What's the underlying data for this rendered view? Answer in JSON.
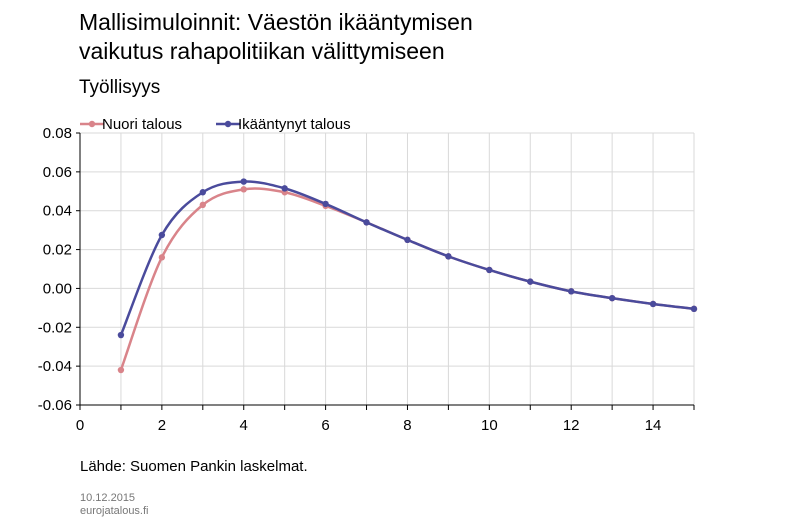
{
  "header": {
    "title_line1": "Mallisimuloinnit: Väestön ikääntymisen",
    "title_line2": "vaikutus rahapolitiikan välittymiseen",
    "subtitle": "Työllisyys"
  },
  "footer": {
    "source": "Lähde: Suomen Pankin laskelmat.",
    "date": "10.12.2015",
    "site": "eurojatalous.fi"
  },
  "chart_data": {
    "type": "line",
    "title": "Työllisyys",
    "xlabel": "",
    "ylabel": "",
    "xlim": [
      0,
      15
    ],
    "ylim": [
      -0.06,
      0.08
    ],
    "x_ticks": [
      0,
      2,
      4,
      6,
      8,
      10,
      12,
      14
    ],
    "x_tick_labels": [
      "0",
      "2",
      "4",
      "6",
      "8",
      "10",
      "12",
      "14"
    ],
    "y_ticks": [
      -0.06,
      -0.04,
      -0.02,
      0.0,
      0.02,
      0.04,
      0.06,
      0.08
    ],
    "y_tick_labels": [
      "-0.06",
      "-0.04",
      "-0.02",
      "0.00",
      "0.02",
      "0.04",
      "0.06",
      "0.08"
    ],
    "grid": true,
    "legend_position": "top-left",
    "x": [
      1,
      2,
      3,
      4,
      5,
      6,
      7,
      8,
      9,
      10,
      11,
      12,
      13,
      14,
      15
    ],
    "series": [
      {
        "name": "Nuori talous",
        "color": "#d9848a",
        "values": [
          -0.042,
          0.016,
          0.043,
          0.051,
          0.0495,
          0.0425,
          0.034,
          0.025,
          0.0165,
          0.0095,
          0.0035,
          -0.0015,
          -0.005,
          -0.008,
          -0.0105
        ]
      },
      {
        "name": "Ikääntynyt talous",
        "color": "#4a4b9c",
        "values": [
          -0.024,
          0.0275,
          0.0495,
          0.055,
          0.0515,
          0.0435,
          0.034,
          0.025,
          0.0165,
          0.0095,
          0.0035,
          -0.0015,
          -0.005,
          -0.008,
          -0.0105
        ]
      }
    ]
  }
}
